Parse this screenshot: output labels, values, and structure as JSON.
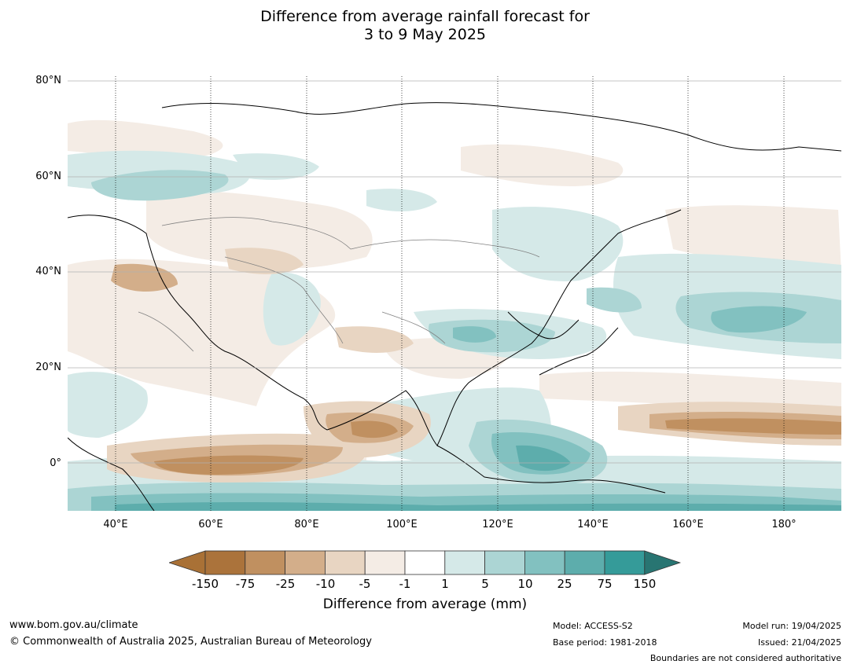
{
  "title": {
    "line1": "Difference from average rainfall forecast for",
    "line2": "3 to 9 May 2025"
  },
  "map": {
    "lat_labels": [
      "80°N",
      "60°N",
      "40°N",
      "20°N",
      "0°"
    ],
    "lon_labels": [
      "40°E",
      "60°E",
      "80°E",
      "100°E",
      "120°E",
      "140°E",
      "160°E",
      "180°"
    ],
    "extent": {
      "lon": [
        30,
        192
      ],
      "lat": [
        -10,
        81
      ]
    }
  },
  "legend": {
    "ticks": [
      "-150",
      "-75",
      "-25",
      "-10",
      "-5",
      "-1",
      "1",
      "5",
      "10",
      "25",
      "75",
      "150"
    ],
    "colors": [
      "#a97136",
      "#ab733b",
      "#c09060",
      "#d3ae8a",
      "#e8d5c2",
      "#f4ece5",
      "#ffffff",
      "#d5e9e8",
      "#acd5d4",
      "#82c1c0",
      "#5dadac",
      "#359b99",
      "#287572"
    ],
    "label": "Difference from average (mm)"
  },
  "footer": {
    "website": "www.bom.gov.au/climate",
    "copyright": "© Commonwealth of Australia 2025, Australian Bureau of Meteorology",
    "model": "Model: ACCESS-S2",
    "base_period": "Base period: 1981-2018",
    "model_run": "Model run: 19/04/2025",
    "issued": "Issued: 21/04/2025",
    "disclaimer": "Boundaries are not considered authoritative"
  }
}
